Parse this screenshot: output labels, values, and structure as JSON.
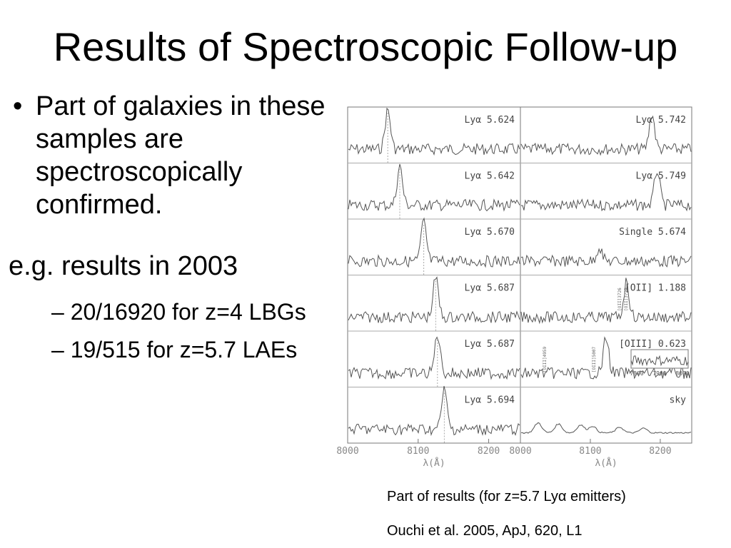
{
  "slide": {
    "title": "Results of Spectroscopic Follow-up",
    "bullet_symbol": "•",
    "bullet": "Part of galaxies in these samples are spectroscopically confirmed.",
    "example": "e.g. results in 2003",
    "sub_bullet_symbol": "–",
    "sub_items": [
      "20/16920 for z=4 LBGs",
      "19/515 for z=5.7 LAEs"
    ],
    "caption_line1": "Part of results (for z=5.7 Lyα emitters)",
    "caption_line2": "Ouchi et al. 2005, ApJ, 620, L1"
  },
  "figure": {
    "left_panels": [
      {
        "line": "Lyα",
        "z": "5.624"
      },
      {
        "line": "Lyα",
        "z": "5.642"
      },
      {
        "line": "Lyα",
        "z": "5.670"
      },
      {
        "line": "Lyα",
        "z": "5.687"
      },
      {
        "line": "Lyα",
        "z": "5.687"
      },
      {
        "line": "Lyα",
        "z": "5.694"
      }
    ],
    "right_panels": [
      {
        "line": "Lyα",
        "z": "5.742"
      },
      {
        "line": "Lyα",
        "z": "5.749"
      },
      {
        "line": "Single",
        "z": "5.674"
      },
      {
        "line": "[OII]",
        "z": "1.188"
      },
      {
        "line": "[OIII]",
        "z": "0.623"
      },
      {
        "line": "sky",
        "z": ""
      }
    ],
    "left_ticks": [
      "8000",
      "8100",
      "8200"
    ],
    "right_ticks": [
      "8000",
      "8100",
      "8200"
    ],
    "xlabel": "λ(Å)",
    "inset_ticks": [
      "7800",
      "7900",
      "8000"
    ],
    "marker_labels": [
      "[OII]3726",
      "[OII]3729",
      "[OIII]4959",
      "[OIII]5007"
    ]
  }
}
